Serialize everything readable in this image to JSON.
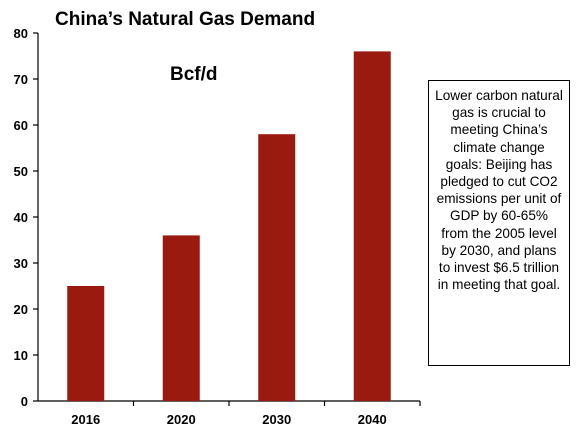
{
  "chart_data": {
    "type": "bar",
    "title": "China’s Natural Gas Demand",
    "unit_label": "Bcf/d",
    "categories": [
      "2016",
      "2020",
      "2030",
      "2040"
    ],
    "values": [
      25,
      36,
      58,
      76
    ],
    "ylim": [
      0,
      80
    ],
    "yticks": [
      0,
      10,
      20,
      30,
      40,
      50,
      60,
      70,
      80
    ],
    "xlabel": "",
    "ylabel": "",
    "bar_color": "#9b1a10",
    "grid": false,
    "legend": "none"
  },
  "note": "Lower carbon natural gas is crucial to meeting China’s climate change goals: Beijing has pledged to cut CO2 emissions per unit of GDP by 60-65% from the 2005 level by 2030, and plans to invest $6.5 trillion in meeting that goal."
}
